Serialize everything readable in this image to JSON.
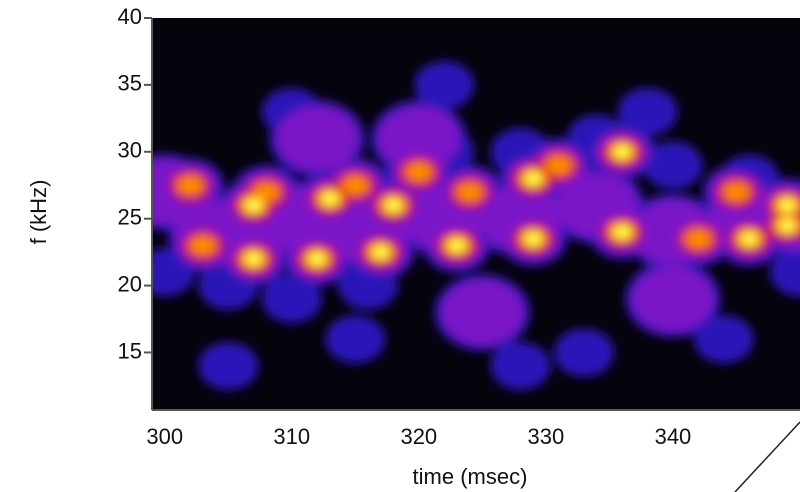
{
  "chart_data": {
    "type": "spectrogram",
    "x_label": "time (msec)",
    "y_label": "f (kHz)",
    "xlim": [
      299,
      350
    ],
    "ylim": [
      10.7,
      40
    ],
    "xticks": [
      300,
      310,
      320,
      330,
      340
    ],
    "yticks": [
      15,
      20,
      25,
      30,
      35,
      40
    ],
    "background": "#05030c",
    "colormap": [
      "#2c18b8",
      "#7a18c8",
      "#d81010",
      "#ff8c00",
      "#ffff50"
    ],
    "x": [
      300,
      304,
      310,
      316,
      322,
      328,
      334,
      340,
      346,
      350,
      300,
      305,
      310,
      316,
      322,
      328,
      334,
      340,
      346,
      350,
      305,
      315,
      328,
      344,
      322,
      338,
      310,
      333,
      312,
      325,
      340,
      320,
      302,
      307,
      308,
      313,
      315,
      318,
      320,
      324,
      329,
      331,
      336,
      345,
      349,
      303,
      307,
      312,
      317,
      323,
      329,
      336,
      342,
      346,
      349
    ],
    "y": [
      27,
      24,
      25,
      24,
      25,
      25,
      26,
      24,
      25,
      25,
      21,
      20,
      19,
      20,
      30,
      30,
      31,
      29,
      28,
      21,
      14,
      16,
      14,
      16,
      35,
      33,
      33,
      15,
      31,
      18,
      19,
      31,
      27.5,
      26,
      27,
      26.5,
      27.5,
      26,
      28.5,
      27,
      28,
      29,
      30,
      27,
      26,
      23,
      22,
      22,
      22.5,
      23,
      23.5,
      24,
      23.5,
      23.5,
      24.5
    ],
    "intensity": [
      2,
      2,
      2,
      2,
      2,
      2,
      2,
      2,
      2,
      2,
      1,
      1,
      1,
      1,
      1,
      1,
      1,
      1,
      1,
      1,
      1,
      1,
      1,
      1,
      1,
      1,
      1,
      1,
      2,
      2,
      2,
      2,
      4,
      5,
      4,
      5,
      4,
      5,
      4,
      4,
      5,
      4,
      5,
      4,
      5,
      4,
      5,
      5,
      5,
      5,
      5,
      5,
      4,
      5,
      5
    ]
  }
}
